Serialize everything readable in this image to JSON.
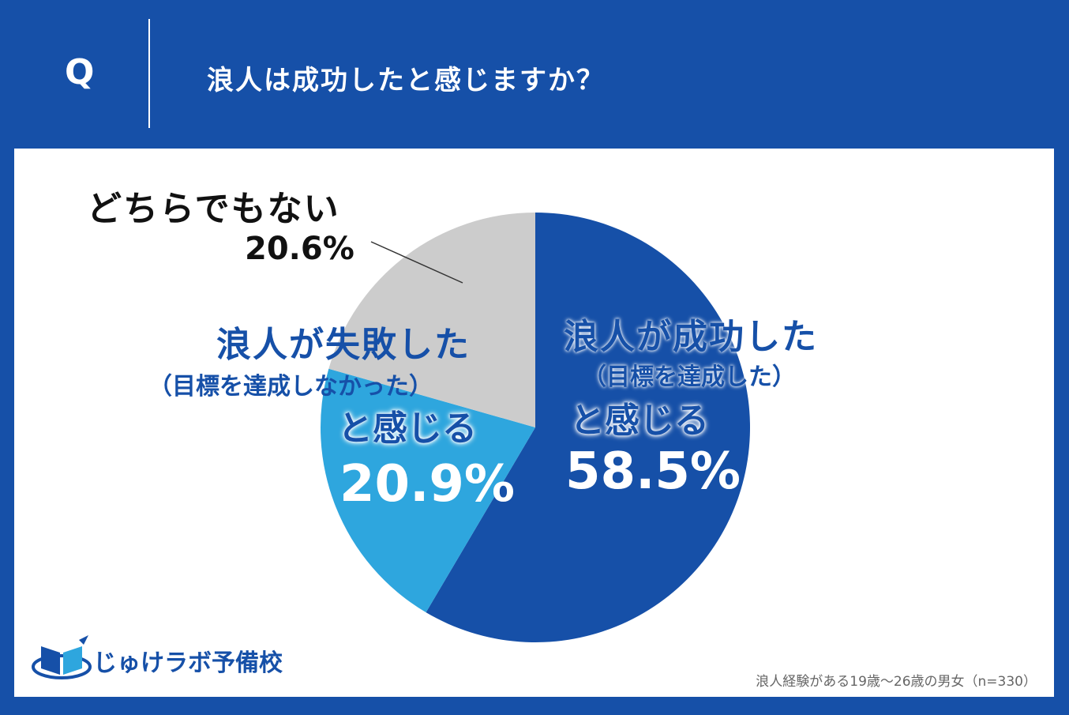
{
  "header": {
    "q_label": "Q",
    "question": "浪人は成功したと感じますか？"
  },
  "chart_data": {
    "type": "pie",
    "categories": [
      "浪人が成功した（目標を達成した）と感じる",
      "浪人が失敗した（目標を達成しなかった）と感じる",
      "どちらでもない"
    ],
    "values": [
      58.5,
      20.9,
      20.6
    ],
    "colors": [
      "#1650a8",
      "#2ea6de",
      "#cccccc"
    ]
  },
  "labels": {
    "success_name": "浪人が成功した",
    "success_sub": "（目標を達成した）",
    "success_feel": "と感じる",
    "success_pct": "58.5%",
    "fail_name": "浪人が失敗した",
    "fail_sub": "（目標を達成しなかった）",
    "fail_feel": "と感じる",
    "fail_pct": "20.9%",
    "neutral_name": "どちらでもない",
    "neutral_pct": "20.6%"
  },
  "logo": {
    "text": "じゅけラボ予備校",
    "icon": "book-icon"
  },
  "footnote": "浪人経験がある19歳～26歳の男女（n=330）"
}
